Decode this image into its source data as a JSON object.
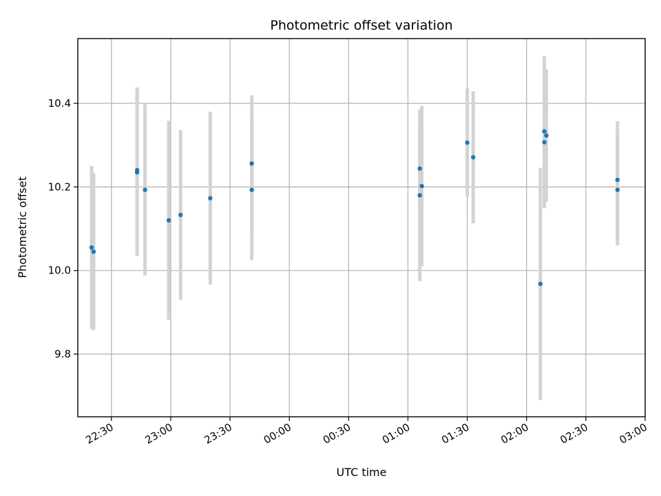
{
  "chart_data": {
    "type": "scatter",
    "title": "Photometric offset variation",
    "xlabel": "UTC time",
    "ylabel": "Photometric offset",
    "x_unit": "time of night (HH:MM), crossing midnight",
    "xlim": [
      "22:13",
      "03:00"
    ],
    "ylim": [
      9.65,
      10.555
    ],
    "x_ticks": [
      "22:30",
      "23:00",
      "23:30",
      "00:00",
      "00:30",
      "01:00",
      "01:30",
      "02:00",
      "02:30",
      "03:00"
    ],
    "y_ticks": [
      "9.8",
      "10.0",
      "10.2",
      "10.4"
    ],
    "grid": true,
    "colors": {
      "point": "#1f77b4",
      "errorbar": "#d3d3d3"
    },
    "points": [
      {
        "x": "22:20",
        "y": 10.055,
        "yerr": 0.195
      },
      {
        "x": "22:21",
        "y": 10.045,
        "yerr": 0.188
      },
      {
        "x": "22:43",
        "y": 10.24,
        "yerr": 0.198
      },
      {
        "x": "22:43",
        "y": 10.235,
        "yerr": 0.2
      },
      {
        "x": "22:47",
        "y": 10.193,
        "yerr": 0.205
      },
      {
        "x": "22:59",
        "y": 10.12,
        "yerr": 0.238
      },
      {
        "x": "23:05",
        "y": 10.133,
        "yerr": 0.203
      },
      {
        "x": "23:20",
        "y": 10.173,
        "yerr": 0.207
      },
      {
        "x": "23:41",
        "y": 10.193,
        "yerr": 0.168
      },
      {
        "x": "23:41",
        "y": 10.256,
        "yerr": 0.163
      },
      {
        "x": "01:06",
        "y": 10.244,
        "yerr": 0.105
      },
      {
        "x": "01:06",
        "y": 10.18,
        "yerr": 0.205
      },
      {
        "x": "01:07",
        "y": 10.202,
        "yerr": 0.192
      },
      {
        "x": "01:30",
        "y": 10.306,
        "yerr": 0.13
      },
      {
        "x": "01:33",
        "y": 10.271,
        "yerr": 0.158
      },
      {
        "x": "02:07",
        "y": 9.968,
        "yerr": 0.278
      },
      {
        "x": "02:09",
        "y": 10.333,
        "yerr": 0.18
      },
      {
        "x": "02:09",
        "y": 10.307,
        "yerr": 0.158
      },
      {
        "x": "02:10",
        "y": 10.323,
        "yerr": 0.158
      },
      {
        "x": "02:46",
        "y": 10.193,
        "yerr": 0.133
      },
      {
        "x": "02:46",
        "y": 10.217,
        "yerr": 0.14
      }
    ]
  }
}
